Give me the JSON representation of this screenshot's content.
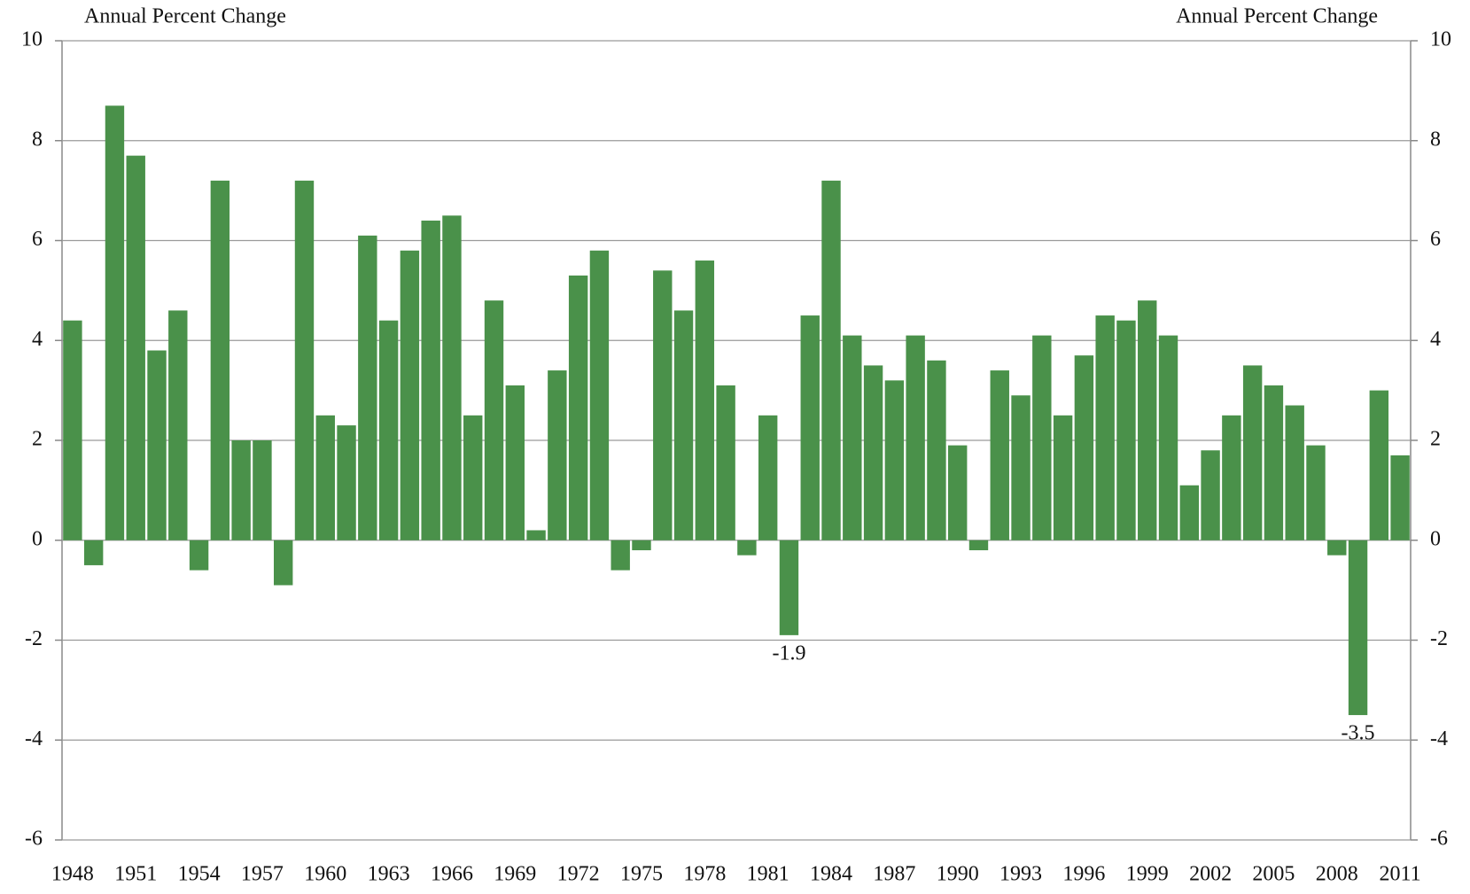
{
  "chart_data": {
    "type": "bar",
    "ylabel": "Annual Percent Change",
    "y2label": "Annual Percent Change",
    "categories": [
      "1948",
      null,
      null,
      "1951",
      null,
      null,
      "1954",
      null,
      null,
      "1957",
      null,
      null,
      "1960",
      null,
      null,
      "1963",
      null,
      null,
      "1966",
      null,
      null,
      "1969",
      null,
      null,
      "1972",
      null,
      null,
      "1975",
      null,
      null,
      "1978",
      null,
      null,
      "1981",
      null,
      null,
      "1984",
      null,
      null,
      "1987",
      null,
      null,
      "1990",
      null,
      null,
      "1993",
      null,
      null,
      "1996",
      null,
      null,
      "1999",
      null,
      null,
      "2002",
      null,
      null,
      "2005",
      null,
      null,
      "2008",
      null,
      null,
      "2011"
    ],
    "values": [
      4.4,
      -0.5,
      8.7,
      7.7,
      3.8,
      4.6,
      -0.6,
      7.2,
      2.0,
      2.0,
      -0.9,
      7.2,
      2.5,
      2.3,
      6.1,
      4.4,
      5.8,
      6.4,
      6.5,
      2.5,
      4.8,
      3.1,
      0.2,
      3.4,
      5.3,
      5.8,
      -0.6,
      -0.2,
      5.4,
      4.6,
      5.6,
      3.1,
      -0.3,
      2.5,
      -1.9,
      4.5,
      7.2,
      4.1,
      3.5,
      3.2,
      4.1,
      3.6,
      1.9,
      -0.2,
      3.4,
      2.9,
      4.1,
      2.5,
      3.7,
      4.5,
      4.4,
      4.8,
      4.1,
      1.1,
      1.8,
      2.5,
      3.5,
      3.1,
      2.7,
      1.9,
      -0.3,
      -3.5,
      3.0,
      1.7
    ],
    "value_labels": [
      null,
      null,
      null,
      null,
      null,
      null,
      null,
      null,
      null,
      null,
      null,
      null,
      null,
      null,
      null,
      null,
      null,
      null,
      null,
      null,
      null,
      null,
      null,
      null,
      null,
      null,
      null,
      null,
      null,
      null,
      null,
      null,
      null,
      null,
      "-1.9",
      null,
      null,
      null,
      null,
      null,
      null,
      null,
      null,
      null,
      null,
      null,
      null,
      null,
      null,
      null,
      null,
      null,
      null,
      null,
      null,
      null,
      null,
      null,
      null,
      null,
      null,
      "-3.5",
      null,
      null
    ],
    "color": "#4a914a",
    "ylim": [
      -6,
      10
    ],
    "yticks": [
      -6,
      -4,
      -2,
      0,
      2,
      4,
      6,
      8,
      10
    ],
    "y2lim": [
      -6,
      10
    ],
    "y2ticks": [
      -6,
      -4,
      -2,
      0,
      2,
      4,
      6,
      8,
      10
    ],
    "grid": true
  }
}
